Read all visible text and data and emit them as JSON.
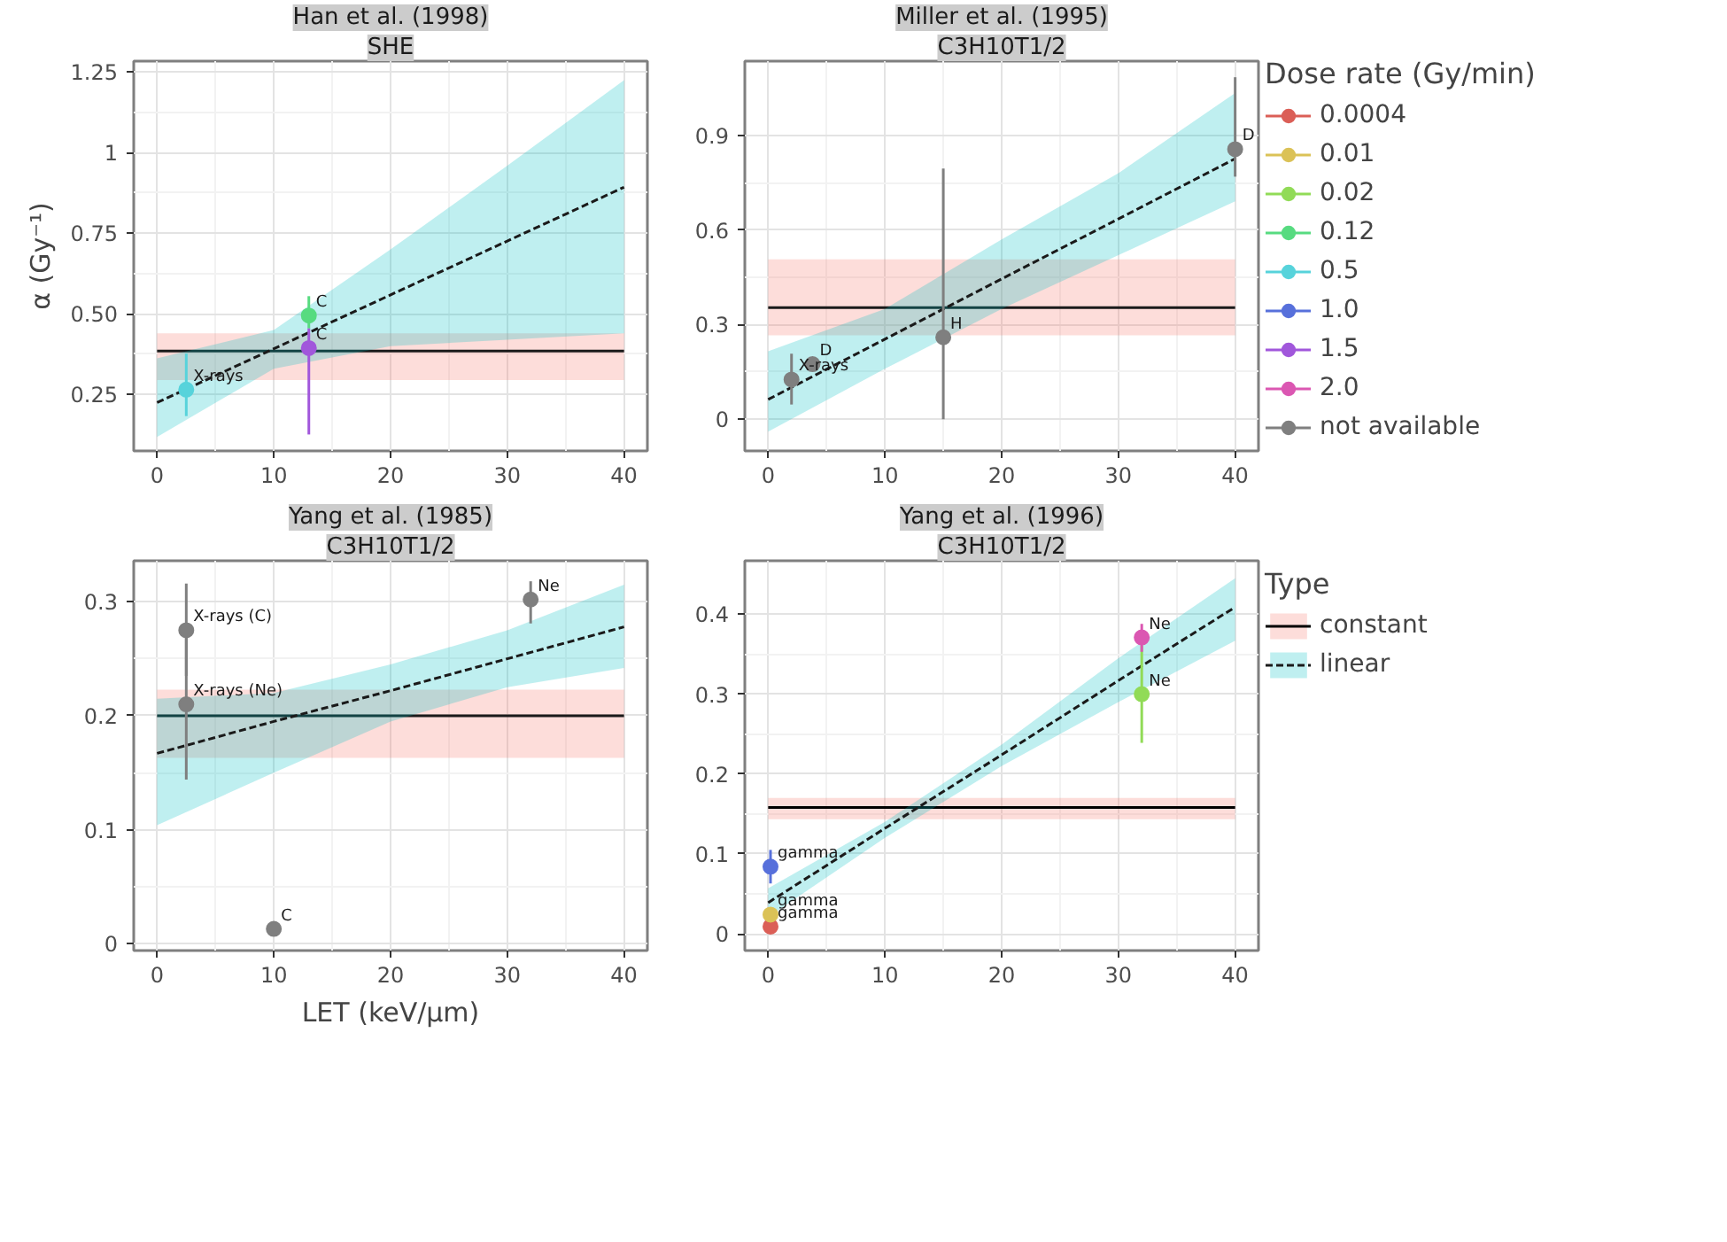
{
  "chart_data": [
    {
      "type": "scatter",
      "title": "Han et al. (1998)",
      "subtitle": "SHE",
      "ylabel": "α (Gy⁻¹)",
      "xlim": [
        -2,
        42
      ],
      "ylim": [
        0.075,
        1.284
      ],
      "xticks": [
        0,
        10,
        20,
        30,
        40
      ],
      "yticks": [
        0.25,
        {
          "value": 0.5,
          "label": "0.50"
        },
        0.75,
        1,
        1.25
      ],
      "grid": true,
      "legend": "right",
      "series": [
        {
          "name": "0.12",
          "marker": "circle",
          "color": "#57db80",
          "x": [
            13
          ],
          "values": [
            0.495
          ],
          "errors": [
            [
              0.455,
              0.555
            ]
          ]
        },
        {
          "name": "0.5",
          "marker": "circle",
          "color": "#57d3db",
          "x": [
            2.5
          ],
          "values": [
            0.265
          ],
          "errors": [
            [
              0.183,
              0.377
            ]
          ]
        },
        {
          "name": "1.5",
          "marker": "circle",
          "color": "#a157db",
          "x": [
            13
          ],
          "values": [
            0.394
          ],
          "errors": [
            [
              0.126,
              0.455
            ]
          ]
        },
        {
          "type": "line",
          "line_style": "solid",
          "color": "#1a1a1a",
          "x": [
            0,
            40
          ],
          "values": [
            0.385,
            0.385
          ],
          "lower": [
            0.295,
            0.295
          ],
          "upper": [
            0.44,
            0.44
          ]
        },
        {
          "type": "line",
          "line_style": "dashed",
          "color": "#1a1a1a",
          "x": [
            0,
            10,
            20,
            30,
            40
          ],
          "values": [
            0.225,
            0.392,
            0.559,
            0.726,
            0.893
          ],
          "lower": [
            0.118,
            0.33,
            0.4,
            0.42,
            0.44
          ],
          "upper": [
            0.362,
            0.45,
            0.7,
            0.96,
            1.225
          ]
        }
      ],
      "annotations": [
        {
          "text": "X-rays",
          "x": 2.5,
          "y": 0.265
        },
        {
          "text": "C",
          "x": 13,
          "y": 0.495
        },
        {
          "text": "C",
          "x": 13,
          "y": 0.394
        }
      ]
    },
    {
      "type": "scatter",
      "title": "Miller et al. (1995)",
      "subtitle": "C3H10T1/2",
      "xlim": [
        -2,
        42
      ],
      "ylim": [
        -0.1,
        1.135
      ],
      "xticks": [
        0,
        10,
        20,
        30,
        40
      ],
      "yticks": [
        0,
        0.3,
        0.6,
        0.9
      ],
      "grid": true,
      "legend": "right",
      "legend_title": "Dose rate (Gy/min)",
      "series": [
        {
          "name": "not available",
          "marker": "circle",
          "color": "#7f7f7f",
          "x": [
            2,
            3.8,
            15,
            40
          ],
          "values": [
            0.126,
            0.175,
            0.26,
            0.856
          ],
          "errors": [
            [
              0.047,
              0.208
            ],
            null,
            [
              0.0,
              0.795
            ],
            [
              0.769,
              1.084
            ]
          ]
        },
        {
          "type": "line",
          "line_style": "solid",
          "color": "#1a1a1a",
          "x": [
            0,
            40
          ],
          "values": [
            0.354,
            0.354
          ],
          "lower": [
            0.266,
            0.266
          ],
          "upper": [
            0.507,
            0.507
          ]
        },
        {
          "type": "line",
          "line_style": "dashed",
          "color": "#1a1a1a",
          "x": [
            0,
            10,
            20,
            30,
            40
          ],
          "values": [
            0.063,
            0.254,
            0.445,
            0.635,
            0.826
          ],
          "lower": [
            -0.039,
            0.16,
            0.35,
            0.52,
            0.691
          ],
          "upper": [
            0.216,
            0.35,
            0.57,
            0.78,
            1.034
          ]
        }
      ],
      "annotations": [
        {
          "text": "X-rays",
          "x": 2,
          "y": 0.126
        },
        {
          "text": "D",
          "x": 3.8,
          "y": 0.175
        },
        {
          "text": "H",
          "x": 15,
          "y": 0.26
        },
        {
          "text": "D",
          "x": 40,
          "y": 0.856
        }
      ]
    },
    {
      "type": "scatter",
      "title": "Yang et al. (1985)",
      "subtitle": "C3H10T1/2",
      "xlabel": "LET (keV/µm)",
      "xlim": [
        -2,
        42
      ],
      "ylim": [
        -0.006,
        0.336
      ],
      "xticks": [
        0,
        10,
        20,
        30,
        40
      ],
      "yticks": [
        0,
        0.1,
        0.2,
        0.3
      ],
      "grid": true,
      "series": [
        {
          "marker": "circle",
          "color": "#7f7f7f",
          "x": [
            2.5,
            2.5,
            10,
            32
          ],
          "values": [
            0.275,
            0.21,
            0.013,
            0.302
          ],
          "errors": [
            [
              0.235,
              0.316
            ],
            [
              0.144,
              0.276
            ],
            null,
            [
              0.281,
              0.318
            ]
          ]
        },
        {
          "type": "line",
          "line_style": "solid",
          "color": "#1a1a1a",
          "x": [
            0,
            40
          ],
          "values": [
            0.2,
            0.2
          ],
          "lower": [
            0.163,
            0.163
          ],
          "upper": [
            0.223,
            0.223
          ]
        },
        {
          "type": "line",
          "line_style": "dashed",
          "color": "#1a1a1a",
          "x": [
            0,
            10,
            20,
            30,
            40
          ],
          "values": [
            0.167,
            0.195,
            0.222,
            0.25,
            0.278
          ],
          "lower": [
            0.104,
            0.15,
            0.195,
            0.225,
            0.242
          ],
          "upper": [
            0.215,
            0.22,
            0.245,
            0.275,
            0.315
          ]
        }
      ],
      "annotations": [
        {
          "text": "X-rays (C)",
          "x": 2.5,
          "y": 0.275
        },
        {
          "text": "X-rays (Ne)",
          "x": 2.5,
          "y": 0.21
        },
        {
          "text": "C",
          "x": 10,
          "y": 0.013
        },
        {
          "text": "Ne",
          "x": 32,
          "y": 0.302
        }
      ]
    },
    {
      "type": "scatter",
      "title": "Yang et al. (1996)",
      "subtitle": "C3H10T1/2",
      "xlim": [
        -2,
        42
      ],
      "ylim": [
        -0.021,
        0.467
      ],
      "xticks": [
        0,
        10,
        20,
        30,
        40
      ],
      "yticks": [
        0,
        0.1,
        0.2,
        0.3,
        0.4
      ],
      "grid": true,
      "legend": "right",
      "legend_title": "Type",
      "series": [
        {
          "name": "0.0004",
          "marker": "circle",
          "color": "#db5f57",
          "x": [
            0.2
          ],
          "values": [
            0.009
          ],
          "errors": [
            null
          ]
        },
        {
          "name": "0.01",
          "marker": "circle",
          "color": "#dbc257",
          "x": [
            0.2
          ],
          "values": [
            0.024
          ],
          "errors": [
            null
          ]
        },
        {
          "name": "0.02",
          "marker": "circle",
          "color": "#91db57",
          "x": [
            32
          ],
          "values": [
            0.3
          ],
          "errors": [
            [
              0.239,
              0.361
            ]
          ]
        },
        {
          "name": "1.0",
          "marker": "circle",
          "color": "#5770db",
          "x": [
            0.2
          ],
          "values": [
            0.084
          ],
          "errors": [
            [
              0.063,
              0.105
            ]
          ]
        },
        {
          "name": "2.0",
          "marker": "circle",
          "color": "#db57b2",
          "x": [
            32
          ],
          "values": [
            0.371
          ],
          "errors": [
            [
              0.353,
              0.388
            ]
          ]
        },
        {
          "name": "constant",
          "type": "line",
          "line_style": "solid",
          "color": "#000000",
          "x": [
            0,
            40
          ],
          "values": [
            0.158,
            0.158
          ],
          "lower": [
            0.1435,
            0.1435
          ],
          "upper": [
            0.17,
            0.17
          ]
        },
        {
          "name": "linear",
          "type": "line",
          "line_style": "dashed",
          "color": "#1a1a1a",
          "x": [
            0,
            10,
            20,
            30,
            40
          ],
          "values": [
            0.039,
            0.132,
            0.224,
            0.317,
            0.409
          ],
          "lower": [
            0.021,
            0.12,
            0.21,
            0.29,
            0.367
          ],
          "upper": [
            0.057,
            0.14,
            0.237,
            0.345,
            0.445
          ]
        }
      ],
      "annotations": [
        {
          "text": "gamma",
          "x": 0.2,
          "y": 0.084
        },
        {
          "text": "gamma",
          "x": 0.2,
          "y": 0.024
        },
        {
          "text": "gamma",
          "x": 0.2,
          "y": 0.009
        },
        {
          "text": "Ne",
          "x": 32,
          "y": 0.371
        },
        {
          "text": "Ne",
          "x": 32,
          "y": 0.3
        }
      ]
    }
  ]
}
